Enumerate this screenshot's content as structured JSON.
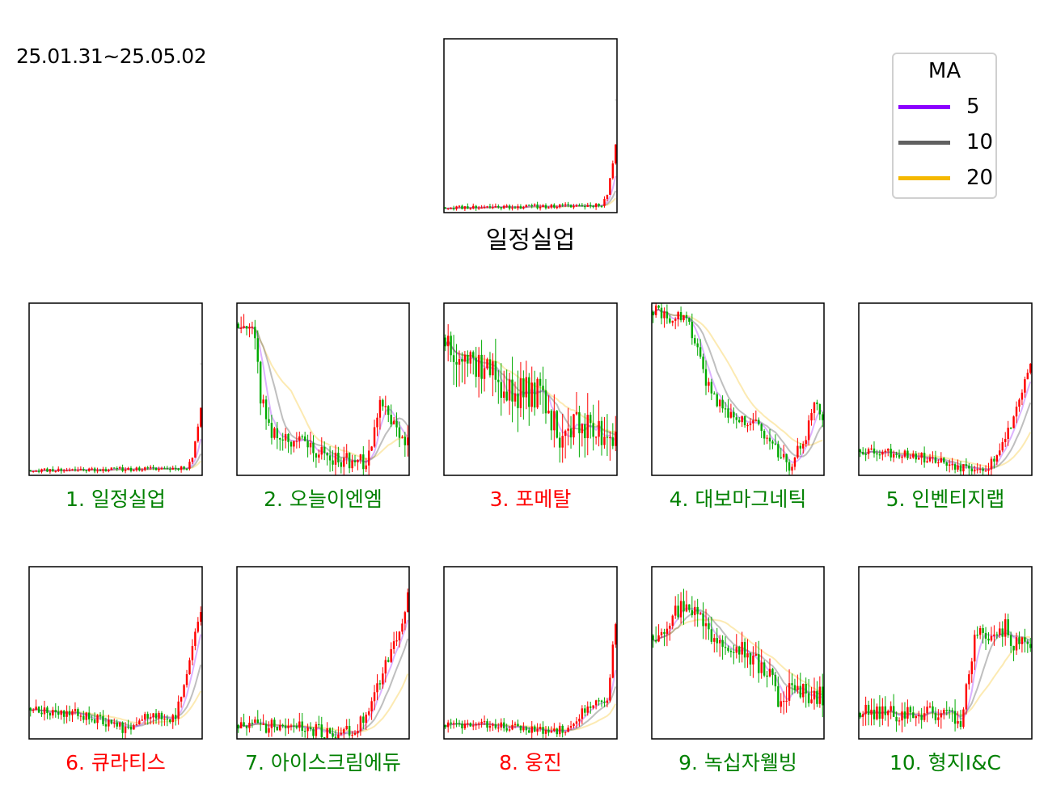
{
  "date_range": "25.01.31~25.05.02",
  "colors": {
    "up": "#ff0000",
    "down": "#00aa00",
    "ma5": "#8b00ff",
    "ma10": "#606060",
    "ma20": "#f5b800",
    "title_rise": "#ff0000",
    "title_fall": "#008000"
  },
  "legend": {
    "title": "MA",
    "entries": [
      {
        "label": "5",
        "color": "#8b00ff"
      },
      {
        "label": "10",
        "color": "#606060"
      },
      {
        "label": "20",
        "color": "#f5b800"
      }
    ]
  },
  "main_chart": {
    "title": "일정실업"
  },
  "chart_data": [
    {
      "type": "candlestick",
      "title": "일정실업",
      "profile": [
        [
          0,
          0.03
        ],
        [
          0.5,
          0.035
        ],
        [
          0.85,
          0.04
        ],
        [
          0.92,
          0.05
        ],
        [
          0.95,
          0.1
        ],
        [
          1,
          0.38
        ]
      ],
      "noise": 0.012,
      "seed": 11,
      "spike_top": 0.65
    },
    {
      "type": "candlestick",
      "title": "1. 일정실업",
      "title_color": "#008000",
      "profile": [
        [
          0,
          0.03
        ],
        [
          0.5,
          0.035
        ],
        [
          0.85,
          0.04
        ],
        [
          0.92,
          0.05
        ],
        [
          0.95,
          0.1
        ],
        [
          1,
          0.38
        ]
      ],
      "noise": 0.012,
      "seed": 11,
      "spike_top": 0.65
    },
    {
      "type": "candlestick",
      "title": "2. 오늘이엔엠",
      "title_color": "#008000",
      "profile": [
        [
          0,
          0.88
        ],
        [
          0.1,
          0.82
        ],
        [
          0.13,
          0.45
        ],
        [
          0.2,
          0.25
        ],
        [
          0.35,
          0.2
        ],
        [
          0.55,
          0.1
        ],
        [
          0.75,
          0.07
        ],
        [
          0.8,
          0.25
        ],
        [
          0.85,
          0.45
        ],
        [
          0.92,
          0.3
        ],
        [
          1,
          0.2
        ]
      ],
      "noise": 0.05,
      "seed": 23
    },
    {
      "type": "candlestick",
      "title": "3. 포메탈",
      "title_color": "#ff0000",
      "profile": [
        [
          0,
          0.8
        ],
        [
          0.1,
          0.7
        ],
        [
          0.25,
          0.62
        ],
        [
          0.4,
          0.45
        ],
        [
          0.55,
          0.5
        ],
        [
          0.65,
          0.25
        ],
        [
          0.75,
          0.3
        ],
        [
          0.85,
          0.25
        ],
        [
          1,
          0.25
        ]
      ],
      "noise": 0.1,
      "seed": 37
    },
    {
      "type": "candlestick",
      "title": "4. 대보마그네틱",
      "title_color": "#008000",
      "profile": [
        [
          0,
          0.95
        ],
        [
          0.2,
          0.9
        ],
        [
          0.28,
          0.65
        ],
        [
          0.35,
          0.45
        ],
        [
          0.5,
          0.32
        ],
        [
          0.6,
          0.3
        ],
        [
          0.75,
          0.12
        ],
        [
          0.8,
          0.06
        ],
        [
          0.9,
          0.2
        ],
        [
          0.95,
          0.42
        ],
        [
          1,
          0.3
        ]
      ],
      "noise": 0.04,
      "seed": 41
    },
    {
      "type": "candlestick",
      "title": "5. 인벤티지랩",
      "title_color": "#008000",
      "profile": [
        [
          0,
          0.15
        ],
        [
          0.3,
          0.12
        ],
        [
          0.6,
          0.05
        ],
        [
          0.75,
          0.05
        ],
        [
          0.85,
          0.2
        ],
        [
          0.92,
          0.4
        ],
        [
          1,
          0.65
        ]
      ],
      "noise": 0.03,
      "seed": 53
    },
    {
      "type": "candlestick",
      "title": "6. 큐라티스",
      "title_color": "#ff0000",
      "profile": [
        [
          0,
          0.18
        ],
        [
          0.3,
          0.14
        ],
        [
          0.45,
          0.1
        ],
        [
          0.55,
          0.06
        ],
        [
          0.7,
          0.15
        ],
        [
          0.85,
          0.12
        ],
        [
          0.93,
          0.45
        ],
        [
          1,
          0.75
        ]
      ],
      "noise": 0.03,
      "seed": 67
    },
    {
      "type": "candlestick",
      "title": "7. 아이스크림에듀",
      "title_color": "#008000",
      "profile": [
        [
          0,
          0.08
        ],
        [
          0.3,
          0.07
        ],
        [
          0.6,
          0.03
        ],
        [
          0.7,
          0.05
        ],
        [
          0.8,
          0.25
        ],
        [
          0.88,
          0.45
        ],
        [
          0.95,
          0.6
        ],
        [
          1,
          0.85
        ]
      ],
      "noise": 0.04,
      "seed": 71
    },
    {
      "type": "candlestick",
      "title": "8. 웅진",
      "title_color": "#ff0000",
      "profile": [
        [
          0,
          0.08
        ],
        [
          0.3,
          0.08
        ],
        [
          0.6,
          0.04
        ],
        [
          0.7,
          0.06
        ],
        [
          0.85,
          0.2
        ],
        [
          0.95,
          0.22
        ],
        [
          1,
          0.68
        ]
      ],
      "noise": 0.025,
      "seed": 83
    },
    {
      "type": "candlestick",
      "title": "9. 녹십자웰빙",
      "title_color": "#008000",
      "profile": [
        [
          0,
          0.6
        ],
        [
          0.1,
          0.7
        ],
        [
          0.2,
          0.8
        ],
        [
          0.35,
          0.6
        ],
        [
          0.5,
          0.55
        ],
        [
          0.6,
          0.45
        ],
        [
          0.7,
          0.35
        ],
        [
          0.75,
          0.2
        ],
        [
          0.8,
          0.28
        ],
        [
          1,
          0.25
        ]
      ],
      "noise": 0.06,
      "seed": 97
    },
    {
      "type": "candlestick",
      "title": "10. 형지I&C",
      "title_color": "#008000",
      "profile": [
        [
          0,
          0.15
        ],
        [
          0.35,
          0.15
        ],
        [
          0.55,
          0.15
        ],
        [
          0.58,
          0.05
        ],
        [
          0.65,
          0.45
        ],
        [
          0.7,
          0.7
        ],
        [
          0.75,
          0.6
        ],
        [
          0.85,
          0.65
        ],
        [
          0.9,
          0.55
        ],
        [
          1,
          0.55
        ]
      ],
      "noise": 0.05,
      "seed": 101
    }
  ]
}
